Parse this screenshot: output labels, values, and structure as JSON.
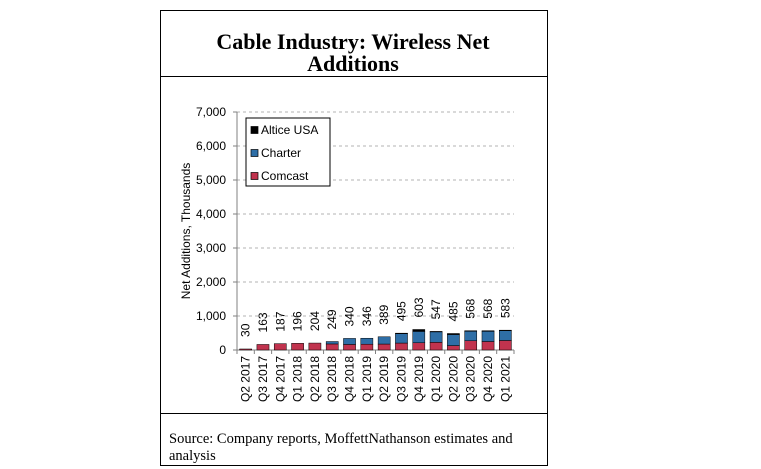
{
  "chart_data": {
    "type": "bar",
    "stacked": true,
    "title": "Cable Industry: Wireless Net Additions",
    "xlabel": "",
    "ylabel": "Net Additions, Thousands",
    "ylim": [
      0,
      7000
    ],
    "yticks": [
      0,
      1000,
      2000,
      3000,
      4000,
      5000,
      6000,
      7000
    ],
    "ytick_labels": [
      "0",
      "1,000",
      "2,000",
      "3,000",
      "4,000",
      "5,000",
      "6,000",
      "7,000"
    ],
    "grid": true,
    "legend_placement": "top-left",
    "categories": [
      "Q2 2017",
      "Q3 2017",
      "Q4 2017",
      "Q1 2018",
      "Q2 2018",
      "Q3 2018",
      "Q4 2018",
      "Q1 2019",
      "Q2 2019",
      "Q3 2019",
      "Q4 2019",
      "Q1 2020",
      "Q2 2020",
      "Q3 2020",
      "Q4 2020",
      "Q1 2021"
    ],
    "series": [
      {
        "name": "Comcast",
        "color": "#c1334e",
        "values": [
          30,
          163,
          187,
          196,
          204,
          178,
          164,
          170,
          175,
          204,
          213,
          225,
          130,
          272,
          250,
          280
        ]
      },
      {
        "name": "Charter",
        "color": "#2e6ea6",
        "values": [
          0,
          0,
          0,
          0,
          0,
          71,
          176,
          176,
          214,
          276,
          334,
          310,
          325,
          279,
          300,
          291
        ]
      },
      {
        "name": "Altice USA",
        "color": "#000000",
        "values": [
          0,
          0,
          0,
          0,
          0,
          0,
          0,
          0,
          0,
          15,
          56,
          12,
          30,
          17,
          18,
          12
        ]
      }
    ],
    "total_labels": [
      "30",
      "163",
      "187",
      "196",
      "204",
      "249",
      "340",
      "346",
      "389",
      "495",
      "603",
      "547",
      "485",
      "568",
      "568",
      "583"
    ]
  },
  "source": {
    "text": "Source: Company reports, MoffettNathanson estimates and analysis"
  }
}
